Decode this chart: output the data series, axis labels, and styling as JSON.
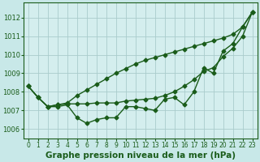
{
  "xlabel": "Graphe pression niveau de la mer (hPa)",
  "bg_color": "#c8e8e8",
  "plot_bg_color": "#d4eeee",
  "grid_color": "#aacccc",
  "line_color": "#1a5c1a",
  "x": [
    0,
    1,
    2,
    3,
    4,
    5,
    6,
    7,
    8,
    9,
    10,
    11,
    12,
    13,
    14,
    15,
    16,
    17,
    18,
    19,
    20,
    21,
    22,
    23
  ],
  "line1": [
    1008.3,
    1007.7,
    1007.2,
    1007.2,
    1007.3,
    1006.6,
    1006.3,
    1006.5,
    1006.6,
    1006.6,
    1007.2,
    1007.2,
    1007.1,
    1007.0,
    1007.6,
    1007.7,
    1007.3,
    1008.0,
    1009.3,
    1009.0,
    1010.2,
    1010.6,
    1011.5,
    1012.3
  ],
  "line2": [
    1008.3,
    1007.7,
    1007.2,
    1007.3,
    1007.35,
    1007.35,
    1007.35,
    1007.4,
    1007.4,
    1007.4,
    1007.5,
    1007.55,
    1007.6,
    1007.65,
    1007.8,
    1008.0,
    1008.3,
    1008.65,
    1009.1,
    1009.3,
    1009.9,
    1010.35,
    1011.0,
    1012.3
  ],
  "line3": [
    1008.3,
    1007.7,
    1007.2,
    1007.3,
    1007.4,
    1007.8,
    1008.1,
    1008.4,
    1008.7,
    1009.0,
    1009.25,
    1009.5,
    1009.7,
    1009.85,
    1010.0,
    1010.15,
    1010.3,
    1010.45,
    1010.6,
    1010.75,
    1010.9,
    1011.1,
    1011.5,
    1012.3
  ],
  "ylim": [
    1005.5,
    1012.8
  ],
  "yticks": [
    1006,
    1007,
    1008,
    1009,
    1010,
    1011,
    1012
  ],
  "marker": "D",
  "markersize": 2.5,
  "linewidth": 1.0,
  "xlabel_fontsize": 7.5,
  "tick_fontsize": 6.0
}
